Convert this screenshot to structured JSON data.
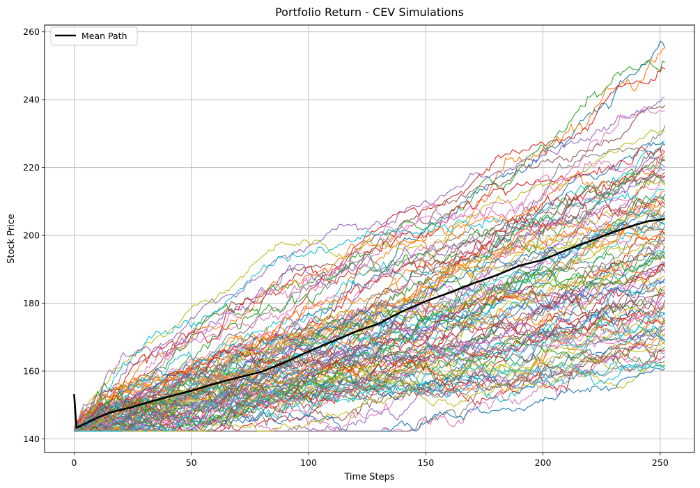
{
  "chart_data": {
    "type": "line",
    "title": "Portfolio Return - CEV Simulations",
    "xlabel": "Time Steps",
    "ylabel": "Stock Price",
    "xlim": [
      -12.6,
      264.6
    ],
    "ylim": [
      136,
      262
    ],
    "x_ticks": [
      0,
      50,
      100,
      150,
      200,
      250
    ],
    "y_ticks": [
      140,
      160,
      180,
      200,
      220,
      240,
      260
    ],
    "grid": true,
    "legend": {
      "placement": "top-left",
      "entries": [
        "Mean Path"
      ]
    },
    "n_steps": 252,
    "n_paths": 100,
    "path_floor": 142.3,
    "palette": [
      "#1f77b4",
      "#ff7f0e",
      "#2ca02c",
      "#d62728",
      "#9467bd",
      "#8c564b",
      "#e377c2",
      "#7f7f7f",
      "#bcbd22",
      "#17becf"
    ],
    "mean_path": {
      "name": "Mean Path",
      "color": "#000000",
      "x": [
        0,
        1,
        5,
        10,
        15,
        20,
        25,
        30,
        40,
        50,
        60,
        70,
        80,
        90,
        100,
        110,
        120,
        130,
        140,
        150,
        160,
        170,
        180,
        190,
        200,
        210,
        220,
        230,
        240,
        245,
        250,
        252
      ],
      "y": [
        153.2,
        143.3,
        144.6,
        146.3,
        147.7,
        148.6,
        149.4,
        150.5,
        152.4,
        154.2,
        156.3,
        158.1,
        159.8,
        162.6,
        165.8,
        168.7,
        171.6,
        174.0,
        177.6,
        180.6,
        183.1,
        185.8,
        188.2,
        191.1,
        192.8,
        195.7,
        198.3,
        201.0,
        203.2,
        204.2,
        204.6,
        204.9
      ]
    },
    "simulated_paths_endpoints": [
      255.3,
      255.3,
      251.0,
      249.0,
      240.5,
      238.4,
      236.8,
      232.4,
      230.6,
      228.0,
      226.5,
      225.0,
      223.2,
      221.8,
      220.2,
      218.6,
      217.4,
      216.0,
      214.6,
      213.4,
      212.2,
      211.0,
      210.0,
      209.0,
      208.0,
      207.0,
      206.0,
      205.0,
      204.2,
      203.4,
      202.6,
      201.8,
      201.0,
      200.2,
      199.4,
      198.6,
      197.8,
      197.0,
      196.2,
      195.4,
      194.6,
      193.8,
      193.0,
      192.2,
      191.4,
      190.6,
      189.8,
      189.0,
      188.0,
      187.0,
      186.0,
      185.0,
      184.0,
      183.0,
      182.0,
      181.0,
      180.0,
      179.0,
      178.2,
      177.4,
      176.6,
      175.8,
      175.0,
      174.2,
      173.4,
      172.6,
      171.8,
      171.0,
      170.2,
      169.4,
      168.6,
      167.8,
      167.0,
      166.2,
      165.4,
      164.6,
      163.8,
      163.0,
      162.2,
      161.4,
      160.8,
      212.8,
      215.2,
      217.6,
      219.4,
      222.4,
      224.2,
      226.8,
      208.6,
      205.6,
      203.0,
      199.0,
      195.0,
      191.0,
      187.4,
      183.4,
      179.4,
      174.4,
      168.0,
      161.6
    ]
  }
}
